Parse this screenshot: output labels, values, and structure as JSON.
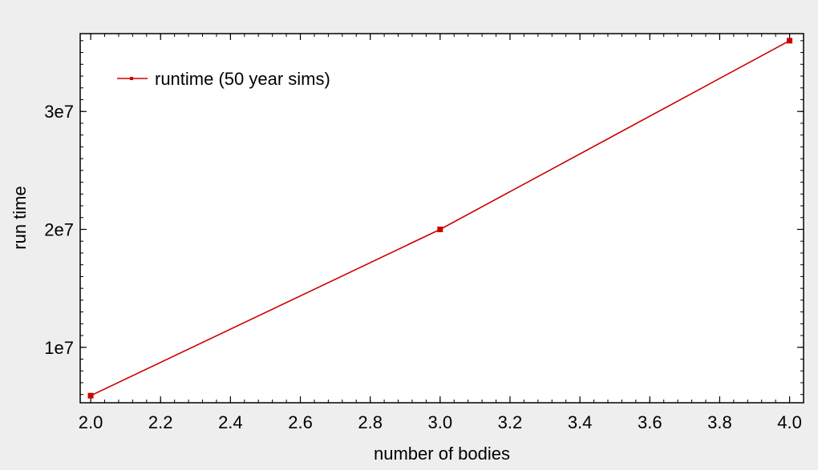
{
  "chart_data": {
    "type": "line",
    "title": "",
    "xlabel": "number of bodies",
    "ylabel": "run time",
    "xlim": [
      1.97,
      4.04
    ],
    "ylim": [
      5300000,
      36600000
    ],
    "x_ticks": [
      2.0,
      2.2,
      2.4,
      2.6,
      2.8,
      3.0,
      3.2,
      3.4,
      3.6,
      3.8,
      4.0
    ],
    "x_tick_labels": [
      "2.0",
      "2.2",
      "2.4",
      "2.6",
      "2.8",
      "3.0",
      "3.2",
      "3.4",
      "3.6",
      "3.8",
      "4.0"
    ],
    "y_ticks": [
      10000000,
      20000000,
      30000000
    ],
    "y_tick_labels": [
      "1e7",
      "2e7",
      "3e7"
    ],
    "grid": false,
    "legend_position": "top-left",
    "series": [
      {
        "name": "runtime (50 year sims)",
        "color": "#cc0000",
        "x": [
          2,
          3,
          4
        ],
        "y": [
          5900000,
          20000000,
          36000000
        ]
      }
    ]
  }
}
